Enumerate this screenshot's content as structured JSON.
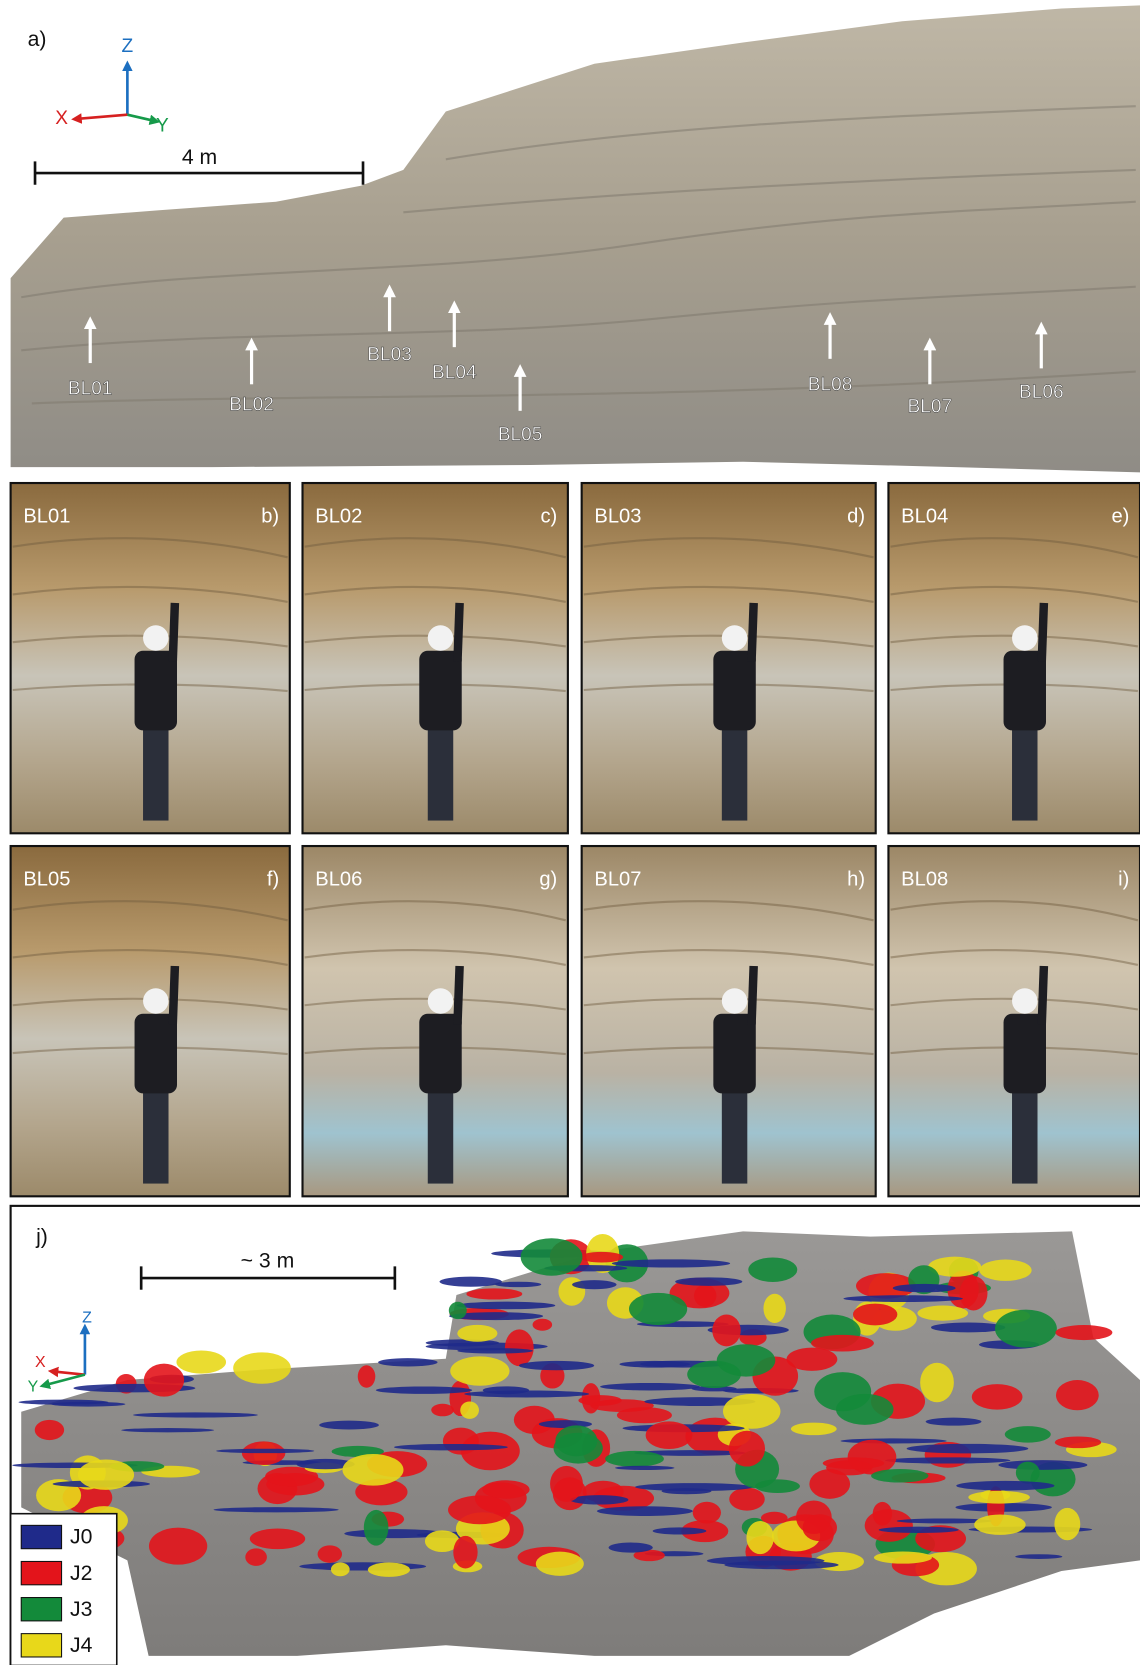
{
  "panel_a": {
    "label": "a)",
    "axes": {
      "z": "Z",
      "x": "X",
      "y": "Y"
    },
    "scale_bar": "4 m",
    "block_labels": [
      "BL01",
      "BL02",
      "BL03",
      "BL04",
      "BL05",
      "BL08",
      "BL07",
      "BL06"
    ]
  },
  "photo_panels": [
    {
      "block": "BL01",
      "label": "b)"
    },
    {
      "block": "BL02",
      "label": "c)"
    },
    {
      "block": "BL03",
      "label": "d)"
    },
    {
      "block": "BL04",
      "label": "e)"
    },
    {
      "block": "BL05",
      "label": "f)"
    },
    {
      "block": "BL06",
      "label": "g)"
    },
    {
      "block": "BL07",
      "label": "h)"
    },
    {
      "block": "BL08",
      "label": "i)"
    }
  ],
  "panel_j": {
    "label": "j)",
    "scale_bar": "~ 3 m",
    "axes": {
      "z": "Z",
      "x": "X",
      "y": "Y"
    },
    "legend": [
      {
        "name": "J0",
        "color": "#1f2a8a"
      },
      {
        "name": "J2",
        "color": "#e3141b"
      },
      {
        "name": "J3",
        "color": "#138a3a"
      },
      {
        "name": "J4",
        "color": "#e8d81a"
      }
    ]
  }
}
